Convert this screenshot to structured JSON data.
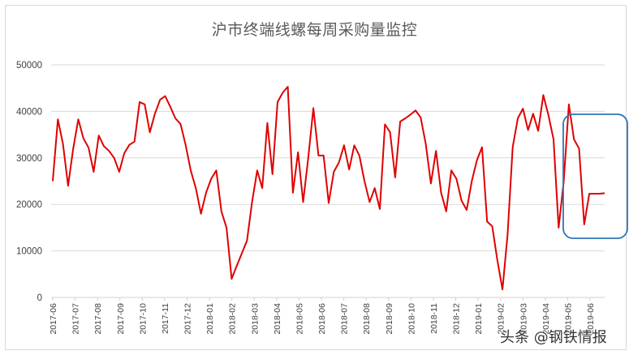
{
  "title": "沪市终端线螺每周采购量监控",
  "watermark": "头条 @钢铁情报",
  "colors": {
    "line": "#e00000",
    "highlight_box": "#2e75b6",
    "grid": "#d9d9d9",
    "text": "#595959"
  },
  "chart_data": {
    "type": "line",
    "title": "沪市终端线螺每周采购量监控",
    "xlabel": "",
    "ylabel": "",
    "ylim": [
      0,
      50000
    ],
    "yticks": [
      0,
      10000,
      20000,
      30000,
      40000,
      50000
    ],
    "grid": true,
    "legend": "none",
    "categories": [
      "2017-06",
      "2017-07",
      "2017-08",
      "2017-09",
      "2017-10",
      "2017-11",
      "2017-12",
      "2018-01",
      "2018-02",
      "2018-03",
      "2018-04",
      "2018-05",
      "2018-06",
      "2018-07",
      "2018-08",
      "2018-09",
      "2018-10",
      "2018-11",
      "2018-12",
      "2019-01",
      "2019-02",
      "2019-03",
      "2019-04",
      "2019-05",
      "2019-06"
    ],
    "series": [
      {
        "name": "沪市终端线螺每周采购量",
        "color": "#e00000",
        "values": [
          25000,
          38300,
          33000,
          24000,
          32000,
          38300,
          34200,
          32200,
          27000,
          34800,
          32500,
          31500,
          30000,
          27000,
          31000,
          32800,
          33500,
          42000,
          41500,
          35500,
          39500,
          42500,
          43300,
          41000,
          38500,
          37300,
          32800,
          27300,
          23500,
          18000,
          22500,
          25500,
          27300,
          18500,
          15000,
          4000,
          6800,
          9500,
          12200,
          20500,
          27300,
          23500,
          37500,
          26500,
          42000,
          44000,
          45300,
          22500,
          31200,
          20500,
          30000,
          40700,
          30500,
          30500,
          20300,
          27000,
          29000,
          32700,
          27500,
          32700,
          30500,
          25000,
          20500,
          23500,
          19000,
          37200,
          35500,
          25800,
          37800,
          38500,
          39300,
          40200,
          38700,
          33000,
          24500,
          31500,
          22500,
          18500,
          27300,
          25500,
          20800,
          18800,
          25000,
          29500,
          32300,
          16300,
          15300,
          8000,
          1700,
          13500,
          32300,
          38500,
          40600,
          36000,
          39500,
          35800,
          43500,
          39200,
          34000,
          15000,
          25000,
          41500,
          34000,
          32000,
          15700,
          22300,
          22300,
          22300,
          22400
        ]
      }
    ],
    "annotations": [
      {
        "type": "rounded-rectangle",
        "color": "#2e75b6",
        "covers": "2019-05 to 2019-06 (latest weeks)"
      }
    ]
  }
}
